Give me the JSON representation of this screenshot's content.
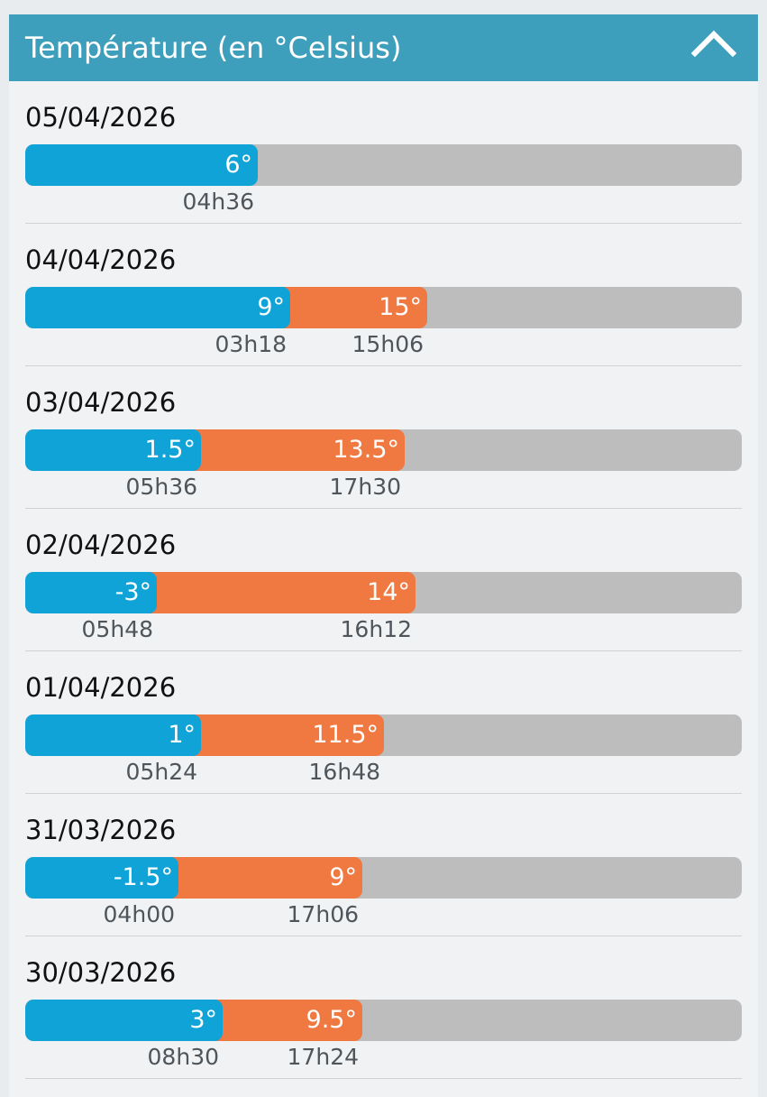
{
  "header": {
    "title": "Température (en °Celsius)",
    "collapse_icon": "chevron-up-icon"
  },
  "colors": {
    "header_bg": "#3d9fbc",
    "min_color": "#0fa3d7",
    "max_color": "#f07841",
    "track_color": "#bdbdbd"
  },
  "days": [
    {
      "date": "05/04/2026",
      "min_label": "6°",
      "min_time": "04h36",
      "min_fill": 0.324
    },
    {
      "date": "04/04/2026",
      "min_label": "9°",
      "min_time": "03h18",
      "max_label": "15°",
      "max_time": "15h06",
      "min_fill": 0.37,
      "max_fill": 0.561
    },
    {
      "date": "03/04/2026",
      "min_label": "1.5°",
      "min_time": "05h36",
      "max_label": "13.5°",
      "max_time": "17h30",
      "min_fill": 0.245,
      "max_fill": 0.53
    },
    {
      "date": "02/04/2026",
      "min_label": "-3°",
      "min_time": "05h48",
      "max_label": "14°",
      "max_time": "16h12",
      "min_fill": 0.184,
      "max_fill": 0.545
    },
    {
      "date": "01/04/2026",
      "min_label": "1°",
      "min_time": "05h24",
      "max_label": "11.5°",
      "max_time": "16h48",
      "min_fill": 0.245,
      "max_fill": 0.5
    },
    {
      "date": "31/03/2026",
      "min_label": "-1.5°",
      "min_time": "04h00",
      "max_label": "9°",
      "max_time": "17h06",
      "min_fill": 0.214,
      "max_fill": 0.47
    },
    {
      "date": "30/03/2026",
      "min_label": "3°",
      "min_time": "08h30",
      "max_label": "9.5°",
      "max_time": "17h24",
      "min_fill": 0.276,
      "max_fill": 0.47
    }
  ]
}
